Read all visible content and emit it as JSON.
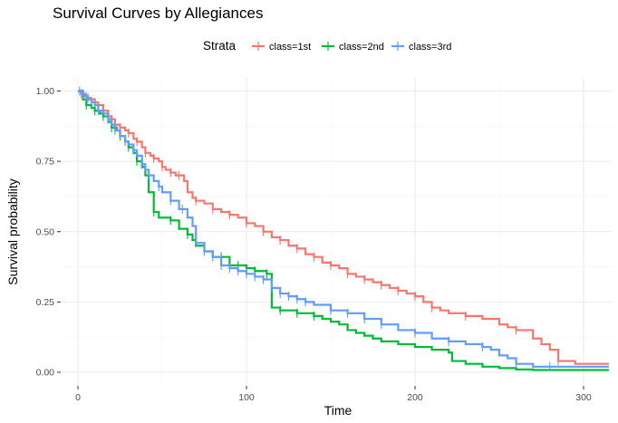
{
  "chart_data": {
    "type": "line",
    "title": "Survival Curves by Allegiances",
    "xlabel": "Time",
    "ylabel": "Survival probability",
    "xlim": [
      0,
      315
    ],
    "ylim": [
      0,
      1
    ],
    "x_ticks": [
      0,
      100,
      200,
      300
    ],
    "x_tick_labels": [
      "0",
      "100",
      "200",
      "300"
    ],
    "y_ticks": [
      0,
      0.25,
      0.5,
      0.75,
      1
    ],
    "y_tick_labels": [
      "0.00",
      "0.25",
      "0.50",
      "0.75",
      "1.00"
    ],
    "grid": true,
    "legend": {
      "title": "Strata",
      "position": "top"
    },
    "series": [
      {
        "name": "class=1st",
        "color": "#F8766D",
        "x": [
          0,
          2,
          4,
          6,
          8,
          10,
          12,
          15,
          18,
          20,
          22,
          25,
          28,
          30,
          33,
          35,
          38,
          40,
          43,
          45,
          48,
          50,
          52,
          55,
          58,
          60,
          63,
          65,
          68,
          70,
          75,
          80,
          85,
          90,
          95,
          100,
          105,
          110,
          115,
          120,
          125,
          130,
          135,
          140,
          145,
          150,
          155,
          160,
          165,
          170,
          175,
          180,
          185,
          190,
          195,
          200,
          205,
          210,
          215,
          220,
          225,
          230,
          240,
          250,
          255,
          260,
          270,
          275,
          280,
          285,
          295,
          300,
          315
        ],
        "y": [
          1.0,
          0.99,
          0.98,
          0.975,
          0.97,
          0.96,
          0.95,
          0.93,
          0.91,
          0.9,
          0.88,
          0.87,
          0.86,
          0.85,
          0.83,
          0.82,
          0.8,
          0.78,
          0.77,
          0.76,
          0.75,
          0.73,
          0.72,
          0.71,
          0.7,
          0.7,
          0.68,
          0.64,
          0.62,
          0.61,
          0.6,
          0.58,
          0.57,
          0.56,
          0.55,
          0.53,
          0.52,
          0.5,
          0.48,
          0.47,
          0.45,
          0.44,
          0.42,
          0.41,
          0.39,
          0.38,
          0.37,
          0.35,
          0.34,
          0.33,
          0.32,
          0.31,
          0.3,
          0.29,
          0.28,
          0.27,
          0.25,
          0.23,
          0.22,
          0.21,
          0.21,
          0.2,
          0.19,
          0.17,
          0.16,
          0.15,
          0.12,
          0.1,
          0.08,
          0.04,
          0.03,
          0.03,
          0.03
        ],
        "censored_x": [
          2,
          6,
          10,
          15,
          20,
          25,
          30,
          35,
          40,
          45,
          50,
          55,
          60,
          70,
          80,
          90,
          100,
          110,
          120,
          130,
          140,
          150,
          160,
          170,
          180,
          190,
          200,
          210,
          230,
          260,
          285
        ]
      },
      {
        "name": "class=2nd",
        "color": "#00BA38",
        "x": [
          0,
          3,
          5,
          8,
          10,
          13,
          15,
          18,
          20,
          23,
          25,
          28,
          30,
          33,
          35,
          38,
          40,
          42,
          45,
          48,
          55,
          60,
          65,
          68,
          70,
          75,
          80,
          90,
          100,
          105,
          112,
          115,
          120,
          130,
          140,
          145,
          150,
          155,
          160,
          165,
          170,
          175,
          180,
          190,
          200,
          210,
          220,
          222,
          230,
          240,
          250,
          260,
          270,
          280,
          300,
          315
        ],
        "y": [
          1.0,
          0.97,
          0.95,
          0.94,
          0.93,
          0.92,
          0.91,
          0.89,
          0.87,
          0.86,
          0.84,
          0.82,
          0.8,
          0.78,
          0.75,
          0.73,
          0.7,
          0.64,
          0.57,
          0.55,
          0.54,
          0.51,
          0.49,
          0.47,
          0.45,
          0.43,
          0.41,
          0.38,
          0.37,
          0.36,
          0.35,
          0.23,
          0.22,
          0.21,
          0.2,
          0.19,
          0.18,
          0.17,
          0.15,
          0.14,
          0.13,
          0.12,
          0.11,
          0.1,
          0.09,
          0.08,
          0.07,
          0.04,
          0.03,
          0.02,
          0.015,
          0.01,
          0.008,
          0.008,
          0.008,
          0.008
        ],
        "censored_x": [
          5,
          10,
          15,
          20,
          25,
          30,
          35,
          45,
          55,
          65,
          75,
          85,
          95,
          105,
          112,
          120,
          130,
          140
        ]
      },
      {
        "name": "class=3rd",
        "color": "#619CFF",
        "x": [
          0,
          1,
          2,
          3,
          4,
          5,
          6,
          8,
          10,
          12,
          15,
          18,
          20,
          22,
          25,
          28,
          30,
          33,
          35,
          38,
          40,
          42,
          45,
          48,
          50,
          55,
          60,
          65,
          68,
          70,
          75,
          80,
          85,
          90,
          95,
          100,
          105,
          110,
          115,
          120,
          125,
          130,
          135,
          140,
          150,
          160,
          170,
          180,
          190,
          200,
          210,
          220,
          230,
          240,
          245,
          250,
          255,
          260,
          270,
          280,
          300,
          315
        ],
        "y": [
          1.0,
          1.0,
          0.995,
          0.99,
          0.985,
          0.98,
          0.97,
          0.96,
          0.95,
          0.93,
          0.92,
          0.9,
          0.88,
          0.86,
          0.84,
          0.82,
          0.81,
          0.79,
          0.77,
          0.74,
          0.72,
          0.7,
          0.68,
          0.66,
          0.64,
          0.61,
          0.58,
          0.55,
          0.52,
          0.46,
          0.43,
          0.41,
          0.38,
          0.37,
          0.36,
          0.35,
          0.34,
          0.33,
          0.3,
          0.28,
          0.27,
          0.26,
          0.25,
          0.24,
          0.22,
          0.21,
          0.19,
          0.17,
          0.15,
          0.14,
          0.12,
          0.11,
          0.1,
          0.09,
          0.08,
          0.06,
          0.05,
          0.03,
          0.02,
          0.02,
          0.02,
          0.02
        ],
        "censored_x": [
          1,
          3,
          5,
          8,
          12,
          18,
          22,
          28,
          33,
          38,
          42,
          48,
          55,
          62,
          70,
          75,
          80,
          85,
          90,
          95,
          100,
          105,
          110,
          115,
          120,
          125,
          130,
          135,
          150,
          160,
          170,
          180,
          200,
          220,
          240,
          260,
          280
        ]
      }
    ]
  }
}
